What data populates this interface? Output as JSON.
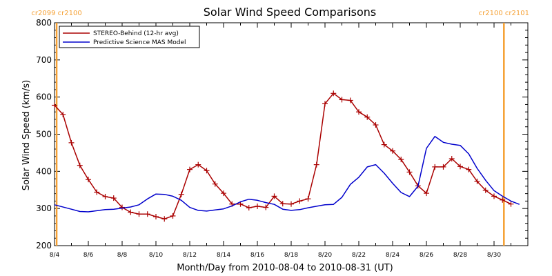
{
  "chart_data": {
    "type": "line",
    "title": "Solar Wind Speed Comparisons",
    "xlabel": "Month/Day from 2010-08-04 to 2010-08-31 (UT)",
    "ylabel": "Solar Wind Speed (km/s)",
    "xlim": [
      "2010-08-04",
      "2010-08-31"
    ],
    "ylim": [
      200,
      800
    ],
    "y_ticks": [
      200,
      300,
      400,
      500,
      600,
      700,
      800
    ],
    "x_tick_labels": [
      "8/4",
      "8/6",
      "8/8",
      "8/10",
      "8/12",
      "8/14",
      "8/16",
      "8/18",
      "8/20",
      "8/22",
      "8/24",
      "8/26",
      "8/28",
      "8/30"
    ],
    "x_tick_dates": [
      "2010-08-04",
      "2010-08-06",
      "2010-08-08",
      "2010-08-10",
      "2010-08-12",
      "2010-08-14",
      "2010-08-16",
      "2010-08-18",
      "2010-08-20",
      "2010-08-22",
      "2010-08-24",
      "2010-08-26",
      "2010-08-28",
      "2010-08-30"
    ],
    "grid": false,
    "legend_position": "top-left",
    "carrington_markers": [
      {
        "date": "2010-08-04 03:00",
        "label": "cr2099 cr2100",
        "color": "#f5a033"
      },
      {
        "date": "2010-08-30 14:00",
        "label": "cr2100 cr2101",
        "color": "#f5a033"
      }
    ],
    "series": [
      {
        "name": "STEREO-Behind (12-hr avg)",
        "color": "#aa0000",
        "marker": "+",
        "points": [
          [
            "2010-08-04 00:00",
            578
          ],
          [
            "2010-08-04 12:00",
            553
          ],
          [
            "2010-08-05 00:00",
            477
          ],
          [
            "2010-08-05 12:00",
            416
          ],
          [
            "2010-08-06 00:00",
            378
          ],
          [
            "2010-08-06 12:00",
            344
          ],
          [
            "2010-08-07 00:00",
            332
          ],
          [
            "2010-08-07 12:00",
            328
          ],
          [
            "2010-08-08 00:00",
            303
          ],
          [
            "2010-08-08 12:00",
            290
          ],
          [
            "2010-08-09 00:00",
            285
          ],
          [
            "2010-08-09 12:00",
            285
          ],
          [
            "2010-08-10 00:00",
            278
          ],
          [
            "2010-08-10 12:00",
            272
          ],
          [
            "2010-08-11 00:00",
            280
          ],
          [
            "2010-08-11 12:00",
            338
          ],
          [
            "2010-08-12 00:00",
            405
          ],
          [
            "2010-08-12 12:00",
            418
          ],
          [
            "2010-08-13 00:00",
            402
          ],
          [
            "2010-08-13 12:00",
            366
          ],
          [
            "2010-08-14 00:00",
            341
          ],
          [
            "2010-08-14 12:00",
            312
          ],
          [
            "2010-08-15 00:00",
            312
          ],
          [
            "2010-08-15 12:00",
            302
          ],
          [
            "2010-08-16 00:00",
            306
          ],
          [
            "2010-08-16 12:00",
            303
          ],
          [
            "2010-08-17 00:00",
            333
          ],
          [
            "2010-08-17 12:00",
            313
          ],
          [
            "2010-08-18 00:00",
            312
          ],
          [
            "2010-08-18 12:00",
            320
          ],
          [
            "2010-08-19 00:00",
            326
          ],
          [
            "2010-08-19 12:00",
            418
          ],
          [
            "2010-08-20 00:00",
            582
          ],
          [
            "2010-08-20 12:00",
            610
          ],
          [
            "2010-08-21 00:00",
            593
          ],
          [
            "2010-08-21 12:00",
            591
          ],
          [
            "2010-08-22 00:00",
            560
          ],
          [
            "2010-08-22 12:00",
            546
          ],
          [
            "2010-08-23 00:00",
            525
          ],
          [
            "2010-08-23 12:00",
            472
          ],
          [
            "2010-08-24 00:00",
            455
          ],
          [
            "2010-08-24 12:00",
            432
          ],
          [
            "2010-08-25 00:00",
            398
          ],
          [
            "2010-08-25 12:00",
            361
          ],
          [
            "2010-08-26 00:00",
            341
          ],
          [
            "2010-08-26 12:00",
            412
          ],
          [
            "2010-08-27 00:00",
            412
          ],
          [
            "2010-08-27 12:00",
            434
          ],
          [
            "2010-08-28 00:00",
            413
          ],
          [
            "2010-08-28 12:00",
            405
          ],
          [
            "2010-08-29 00:00",
            373
          ],
          [
            "2010-08-29 12:00",
            349
          ],
          [
            "2010-08-30 00:00",
            333
          ],
          [
            "2010-08-30 12:00",
            323
          ],
          [
            "2010-08-31 00:00",
            312
          ]
        ]
      },
      {
        "name": "Predictive Science MAS Model",
        "color": "#0000cc",
        "marker": "",
        "points": [
          [
            "2010-08-04 00:00",
            310
          ],
          [
            "2010-08-05 00:00",
            298
          ],
          [
            "2010-08-05 12:00",
            292
          ],
          [
            "2010-08-06 00:00",
            291
          ],
          [
            "2010-08-07 00:00",
            297
          ],
          [
            "2010-08-07 12:00",
            298
          ],
          [
            "2010-08-08 00:00",
            301
          ],
          [
            "2010-08-08 12:00",
            304
          ],
          [
            "2010-08-09 00:00",
            310
          ],
          [
            "2010-08-09 12:00",
            326
          ],
          [
            "2010-08-10 00:00",
            339
          ],
          [
            "2010-08-10 12:00",
            338
          ],
          [
            "2010-08-11 00:00",
            333
          ],
          [
            "2010-08-11 12:00",
            322
          ],
          [
            "2010-08-12 00:00",
            303
          ],
          [
            "2010-08-12 12:00",
            295
          ],
          [
            "2010-08-13 00:00",
            293
          ],
          [
            "2010-08-13 12:00",
            296
          ],
          [
            "2010-08-14 00:00",
            299
          ],
          [
            "2010-08-14 12:00",
            307
          ],
          [
            "2010-08-15 00:00",
            318
          ],
          [
            "2010-08-15 12:00",
            325
          ],
          [
            "2010-08-16 00:00",
            322
          ],
          [
            "2010-08-16 12:00",
            316
          ],
          [
            "2010-08-17 00:00",
            311
          ],
          [
            "2010-08-17 12:00",
            298
          ],
          [
            "2010-08-18 00:00",
            295
          ],
          [
            "2010-08-18 12:00",
            297
          ],
          [
            "2010-08-19 00:00",
            302
          ],
          [
            "2010-08-19 12:00",
            306
          ],
          [
            "2010-08-20 00:00",
            310
          ],
          [
            "2010-08-20 12:00",
            311
          ],
          [
            "2010-08-21 00:00",
            330
          ],
          [
            "2010-08-21 12:00",
            365
          ],
          [
            "2010-08-22 00:00",
            384
          ],
          [
            "2010-08-22 12:00",
            412
          ],
          [
            "2010-08-23 00:00",
            418
          ],
          [
            "2010-08-23 12:00",
            395
          ],
          [
            "2010-08-24 00:00",
            368
          ],
          [
            "2010-08-24 12:00",
            343
          ],
          [
            "2010-08-25 00:00",
            332
          ],
          [
            "2010-08-25 12:00",
            360
          ],
          [
            "2010-08-26 00:00",
            462
          ],
          [
            "2010-08-26 12:00",
            494
          ],
          [
            "2010-08-27 00:00",
            478
          ],
          [
            "2010-08-27 12:00",
            473
          ],
          [
            "2010-08-28 00:00",
            470
          ],
          [
            "2010-08-28 12:00",
            447
          ],
          [
            "2010-08-29 00:00",
            408
          ],
          [
            "2010-08-29 12:00",
            376
          ],
          [
            "2010-08-30 00:00",
            348
          ],
          [
            "2010-08-30 12:00",
            333
          ],
          [
            "2010-08-31 00:00",
            320
          ],
          [
            "2010-08-31 12:00",
            311
          ]
        ]
      }
    ]
  }
}
